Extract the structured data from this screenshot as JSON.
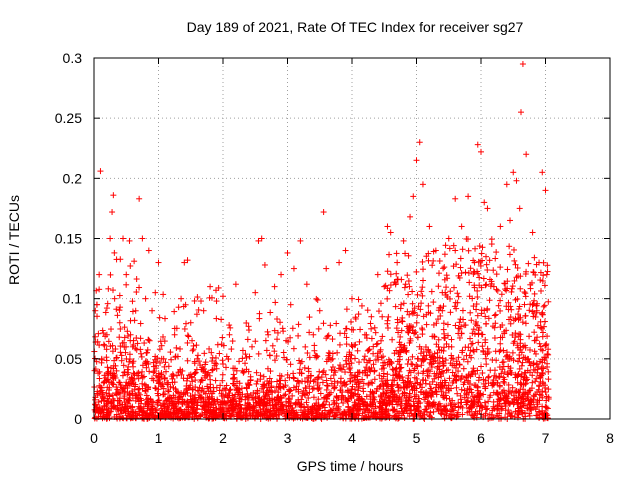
{
  "chart_data": {
    "type": "scatter",
    "title": "Day 189 of 2021, Rate Of TEC Index for receiver sg27",
    "xlabel": "GPS time / hours",
    "ylabel": "ROTI / TECUs",
    "xlim": [
      0,
      8
    ],
    "ylim": [
      0,
      0.3
    ],
    "x_ticks": [
      0,
      1,
      2,
      3,
      4,
      5,
      6,
      7,
      8
    ],
    "x_tick_labels": [
      "0",
      "1",
      "2",
      "3",
      "4",
      "5",
      "6",
      "7",
      "8"
    ],
    "y_ticks": [
      0,
      0.05,
      0.1,
      0.15,
      0.2,
      0.25,
      0.3
    ],
    "y_tick_labels": [
      "0",
      "0.05",
      "0.1",
      "0.15",
      "0.2",
      "0.25",
      "0.3"
    ],
    "grid": true,
    "marker": "+",
    "series": [
      {
        "name": "ROTI",
        "color": "#ff0000",
        "points": [
          [
            0.02,
            0.09
          ],
          [
            0.05,
            0.02
          ],
          [
            0.08,
            0.12
          ],
          [
            0.1,
            0.206
          ],
          [
            0.12,
            0.05
          ],
          [
            0.15,
            0.03
          ],
          [
            0.2,
            0.07
          ],
          [
            0.25,
            0.15
          ],
          [
            0.28,
            0.172
          ],
          [
            0.3,
            0.186
          ],
          [
            0.32,
            0.1
          ],
          [
            0.35,
            0.04
          ],
          [
            0.4,
            0.08
          ],
          [
            0.45,
            0.15
          ],
          [
            0.5,
            0.12
          ],
          [
            0.55,
            0.148
          ],
          [
            0.6,
            0.06
          ],
          [
            0.7,
            0.183
          ],
          [
            0.75,
            0.15
          ],
          [
            0.8,
            0.1
          ],
          [
            0.85,
            0.14
          ],
          [
            0.9,
            0.09
          ],
          [
            0.95,
            0.105
          ],
          [
            1.0,
            0.13
          ],
          [
            1.05,
            0.05
          ],
          [
            1.15,
            0.03
          ],
          [
            1.25,
            0.07
          ],
          [
            1.35,
            0.1
          ],
          [
            1.4,
            0.13
          ],
          [
            1.45,
            0.132
          ],
          [
            1.5,
            0.08
          ],
          [
            1.6,
            0.05
          ],
          [
            1.7,
            0.09
          ],
          [
            1.8,
            0.11
          ],
          [
            1.9,
            0.098
          ],
          [
            2.0,
            0.102
          ],
          [
            2.1,
            0.07
          ],
          [
            2.2,
            0.112
          ],
          [
            2.3,
            0.04
          ],
          [
            2.45,
            0.06
          ],
          [
            2.5,
            0.105
          ],
          [
            2.55,
            0.148
          ],
          [
            2.6,
            0.15
          ],
          [
            2.65,
            0.128
          ],
          [
            2.7,
            0.07
          ],
          [
            2.8,
            0.11
          ],
          [
            2.9,
            0.12
          ],
          [
            3.0,
            0.138
          ],
          [
            3.05,
            0.095
          ],
          [
            3.1,
            0.125
          ],
          [
            3.2,
            0.148
          ],
          [
            3.3,
            0.112
          ],
          [
            3.4,
            0.07
          ],
          [
            3.5,
            0.09
          ],
          [
            3.56,
            0.172
          ],
          [
            3.6,
            0.125
          ],
          [
            3.7,
            0.05
          ],
          [
            3.8,
            0.13
          ],
          [
            3.9,
            0.14
          ],
          [
            4.0,
            0.1
          ],
          [
            4.1,
            0.03
          ],
          [
            4.2,
            0.07
          ],
          [
            4.3,
            0.085
          ],
          [
            4.4,
            0.12
          ],
          [
            4.45,
            0.065
          ],
          [
            4.5,
            0.11
          ],
          [
            4.55,
            0.16
          ],
          [
            4.6,
            0.155
          ],
          [
            4.7,
            0.13
          ],
          [
            4.8,
            0.148
          ],
          [
            4.9,
            0.168
          ],
          [
            4.95,
            0.185
          ],
          [
            5.0,
            0.215
          ],
          [
            5.05,
            0.23
          ],
          [
            5.1,
            0.195
          ],
          [
            5.2,
            0.16
          ],
          [
            5.3,
            0.14
          ],
          [
            5.4,
            0.09
          ],
          [
            5.5,
            0.15
          ],
          [
            5.6,
            0.183
          ],
          [
            5.7,
            0.16
          ],
          [
            5.8,
            0.185
          ],
          [
            5.9,
            0.13
          ],
          [
            5.95,
            0.228
          ],
          [
            6.0,
            0.222
          ],
          [
            6.05,
            0.18
          ],
          [
            6.1,
            0.175
          ],
          [
            6.2,
            0.11
          ],
          [
            6.3,
            0.16
          ],
          [
            6.4,
            0.195
          ],
          [
            6.45,
            0.165
          ],
          [
            6.5,
            0.205
          ],
          [
            6.55,
            0.198
          ],
          [
            6.6,
            0.175
          ],
          [
            6.62,
            0.255
          ],
          [
            6.65,
            0.295
          ],
          [
            6.7,
            0.22
          ],
          [
            6.8,
            0.155
          ],
          [
            6.9,
            0.13
          ],
          [
            6.95,
            0.205
          ],
          [
            7.0,
            0.19
          ],
          [
            7.02,
            0.12
          ]
        ],
        "density_segments": [
          {
            "x_start": 0.0,
            "x_end": 0.15,
            "n": 70,
            "y_mean": 0.028,
            "y_max": 0.11
          },
          {
            "x_start": 0.15,
            "x_end": 0.7,
            "n": 280,
            "y_mean": 0.038,
            "y_max": 0.14
          },
          {
            "x_start": 0.7,
            "x_end": 1.05,
            "n": 150,
            "y_mean": 0.022,
            "y_max": 0.09
          },
          {
            "x_start": 1.05,
            "x_end": 2.2,
            "n": 500,
            "y_mean": 0.024,
            "y_max": 0.11
          },
          {
            "x_start": 2.2,
            "x_end": 3.5,
            "n": 520,
            "y_mean": 0.022,
            "y_max": 0.1
          },
          {
            "x_start": 3.5,
            "x_end": 3.9,
            "n": 130,
            "y_mean": 0.028,
            "y_max": 0.08
          },
          {
            "x_start": 3.9,
            "x_end": 4.5,
            "n": 300,
            "y_mean": 0.028,
            "y_max": 0.1
          },
          {
            "x_start": 4.5,
            "x_end": 5.4,
            "n": 500,
            "y_mean": 0.048,
            "y_max": 0.14
          },
          {
            "x_start": 5.4,
            "x_end": 6.6,
            "n": 600,
            "y_mean": 0.055,
            "y_max": 0.15
          },
          {
            "x_start": 6.6,
            "x_end": 7.05,
            "n": 260,
            "y_mean": 0.05,
            "y_max": 0.14
          }
        ]
      }
    ]
  }
}
